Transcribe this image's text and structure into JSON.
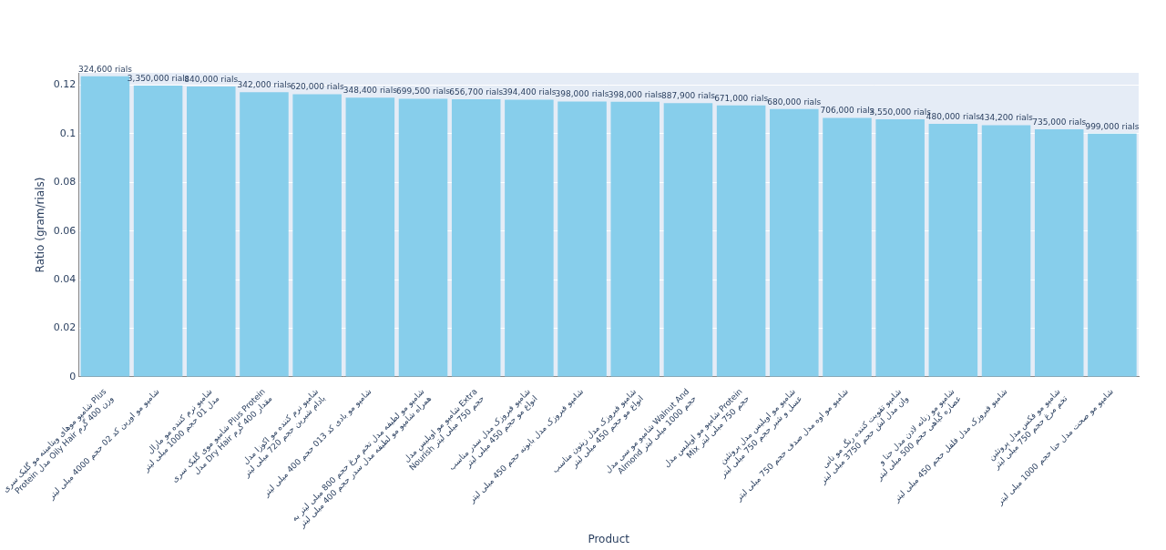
{
  "chart_data": {
    "type": "bar",
    "x_label": "Product",
    "y_label": "Ratio (gram/rials)",
    "categories": [
      "شامپو موهای ویتامینه مو گلیک سری Plus Protein مدل Oily Hair وزن 400 گرم",
      "شامپو مو اوربن کد 02 حجم 4000 میلی لیتر",
      "شامپو نرم کننده مو مارال مدل 01 حجم 1000 میلی لیتر",
      "شامپو موی گلیک سری Plus Protein مدل Dry Hair مقدار 400 گرم",
      "شامپو نرم کننده مو اکوزا مدل بادام شیرین حجم 720 میلی لیتر",
      "شامپو مو بادی کد 013 حجم 400 میلی لیتر",
      "شامپو مو لطیفه مدل تخم مرغ حجم 800 میلی لیتر به همراه شامپو مو لطیفه مدل سدر حجم 400 میلی لیتر",
      "شامپو مو اویلیس مدل Extra Nourish حجم 750 میلی لیتر",
      "شامپو فیروزک مدل سدر مناسب انواع مو حجم 450 میلی لیتر",
      "شامپو فیروزک مدل بابونه حجم 450 میلی لیتر",
      "شامپو فیروزک مدل زیتون مناسب انواع مو حجم 450 میلی لیتر",
      "شامپو مو سی مدل Walnut And Almond حجم 1000 میلی لیتر",
      "شامپو مو اویلیس مدل Protein Mix حجم 750 میلی لیتر",
      "شامپو مو اویلیس مدل پروتئین عسل و شیر حجم 750 میلی لیتر",
      "شامپو مو اوه مدل صدف حجم 750 میلی لیتر",
      "شامپو تقویت کننده رنگ مو نانی وان مدل لش حجم 3750 میلی لیتر",
      "شامپو مو زنانه لادن مدل حنا و عصاره گیاهی حجم 500 میلی لیتر",
      "شامپو فیروزک مدل فلفل حجم 450 میلی لیتر",
      "شامپو مو فکس مدل پروتئین تخم مرغ حجم 750 میلی لیتر",
      "شامپو مو صحت مدل حنا حجم 1000 میلی لیتر"
    ],
    "values": [
      0.1236,
      0.1198,
      0.1194,
      0.117,
      0.1162,
      0.1148,
      0.1143,
      0.1141,
      0.114,
      0.1132,
      0.1131,
      0.1126,
      0.1116,
      0.1101,
      0.1065,
      0.1059,
      0.104,
      0.1035,
      0.1018,
      0.1
    ],
    "annotations": [
      "324,600 rials",
      "3,350,000 rials",
      "840,000 rials",
      "342,000 rials",
      "620,000 rials",
      "348,400 rials",
      "699,500 rials",
      "656,700 rials",
      "394,400 rials",
      "398,000 rials",
      "398,000 rials",
      "887,900 rials",
      "671,000 rials",
      "680,000 rials",
      "706,000 rials",
      "3,550,000 rials",
      "480,000 rials",
      "434,200 rials",
      "735,000 rials",
      "999,000 rials"
    ],
    "color": "#87CEEB",
    "ylim": [
      0,
      0.125
    ],
    "yticks": [
      0,
      0.02,
      0.04,
      0.06,
      0.08,
      0.1,
      0.12
    ],
    "grid": true
  }
}
